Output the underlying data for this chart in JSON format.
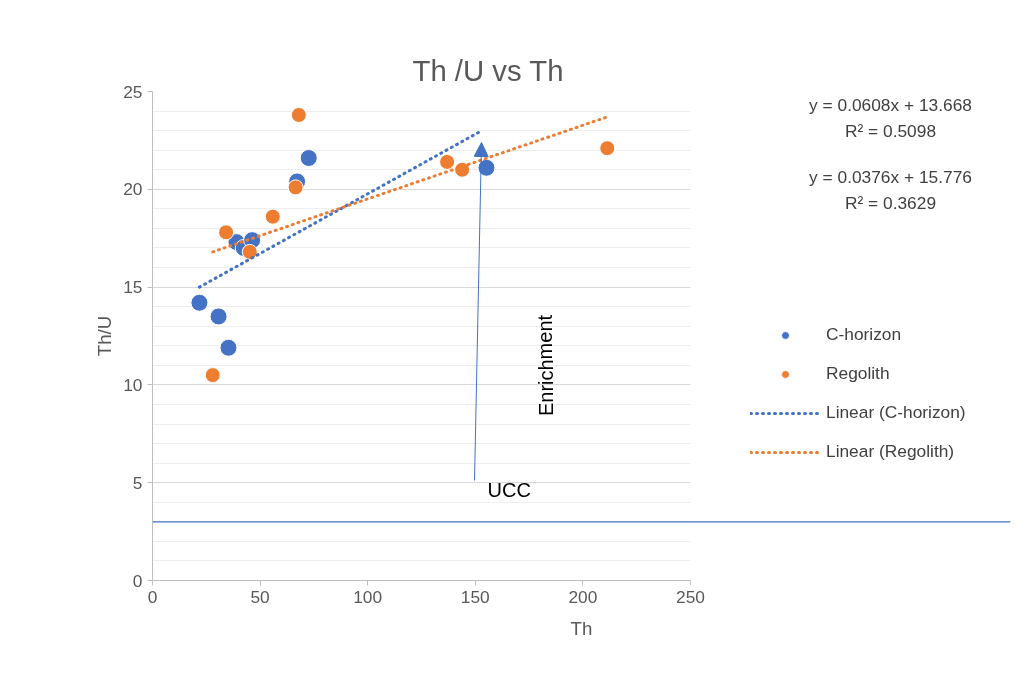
{
  "chart_data": {
    "type": "scatter",
    "title": "Th /U vs Th",
    "xlabel": "Th",
    "ylabel": "Th/U",
    "xlim": [
      0,
      250
    ],
    "xticks": [
      0,
      50,
      100,
      150,
      200,
      250
    ],
    "ylim": [
      0,
      25
    ],
    "yticks": [
      0,
      5,
      10,
      15,
      20,
      25
    ],
    "grid": "y",
    "legend": "right",
    "series": [
      {
        "name": "C-horizon",
        "color": "#4472c4",
        "marker": "circle",
        "x": [
          21.8,
          30.7,
          35.3,
          39.0,
          42.4,
          46.3,
          67.2,
          72.6,
          155.2
        ],
        "values": [
          14.2,
          13.5,
          11.9,
          17.3,
          17.0,
          17.4,
          20.4,
          21.6,
          21.1
        ]
      },
      {
        "name": "Regolith",
        "color": "#ed7d31",
        "marker": "circle",
        "x": [
          28.0,
          34.2,
          45.2,
          55.9,
          66.5,
          68.0,
          136.9,
          143.9,
          211.3
        ],
        "values": [
          10.5,
          17.8,
          16.8,
          18.6,
          20.1,
          23.8,
          21.4,
          21.0,
          22.1
        ]
      },
      {
        "name": "Linear (C-horizon)",
        "type": "line",
        "line_style": "dotted",
        "color": "#4472c4",
        "x": [
          21.8,
          153
        ],
        "values": [
          15.0,
          23.0
        ]
      },
      {
        "name": "Linear (Regolith)",
        "type": "line",
        "line_style": "dotted",
        "color": "#ed7d31",
        "x": [
          28.0,
          211.3
        ],
        "values": [
          16.8,
          23.7
        ]
      }
    ],
    "ref_lines": [
      {
        "axis": "y",
        "value": 3,
        "label": "UCC",
        "color": "#4472c4"
      }
    ],
    "annotations": [
      "y = 0.0608x + 13.668",
      "R² = 0.5098",
      "y = 0.0376x + 15.776",
      "R² = 0.3629",
      "Enrichment"
    ]
  }
}
